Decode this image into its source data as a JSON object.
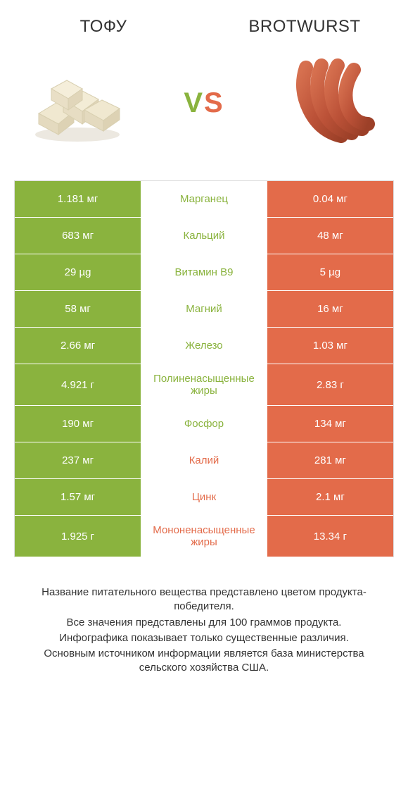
{
  "header": {
    "left_title": "ТОФУ",
    "right_title": "BROTWURST",
    "vs_v": "V",
    "vs_s": "S"
  },
  "colors": {
    "left_bg": "#8ab33e",
    "right_bg": "#e36b4a",
    "mid_left": "#8ab33e",
    "mid_right": "#e36b4a",
    "text_white": "#ffffff",
    "border": "#dddddd",
    "body_text": "#333333"
  },
  "rows": [
    {
      "left": "1.181 мг",
      "mid": "Марганец",
      "right": "0.04 мг",
      "winner": "left"
    },
    {
      "left": "683 мг",
      "mid": "Кальций",
      "right": "48 мг",
      "winner": "left"
    },
    {
      "left": "29 µg",
      "mid": "Витамин B9",
      "right": "5 µg",
      "winner": "left"
    },
    {
      "left": "58 мг",
      "mid": "Магний",
      "right": "16 мг",
      "winner": "left"
    },
    {
      "left": "2.66 мг",
      "mid": "Железо",
      "right": "1.03 мг",
      "winner": "left"
    },
    {
      "left": "4.921 г",
      "mid": "Полиненасыщенные жиры",
      "right": "2.83 г",
      "winner": "left"
    },
    {
      "left": "190 мг",
      "mid": "Фосфор",
      "right": "134 мг",
      "winner": "left"
    },
    {
      "left": "237 мг",
      "mid": "Калий",
      "right": "281 мг",
      "winner": "right"
    },
    {
      "left": "1.57 мг",
      "mid": "Цинк",
      "right": "2.1 мг",
      "winner": "right"
    },
    {
      "left": "1.925 г",
      "mid": "Мононенасыщенные жиры",
      "right": "13.34 г",
      "winner": "right"
    }
  ],
  "footer": {
    "line1": "Название питательного вещества представлено цветом продукта-победителя.",
    "line2": "Все значения представлены для 100 граммов продукта.",
    "line3": "Инфографика показывает только существенные различия.",
    "line4": "Основным источником информации является база министерства сельского хозяйства США."
  }
}
